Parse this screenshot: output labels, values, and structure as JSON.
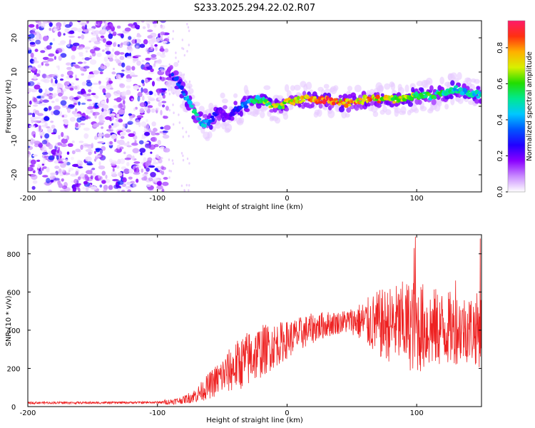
{
  "title": "S233.2025.294.22.02.R07",
  "chart_data": [
    {
      "type": "heatmap",
      "name": "spectrogram",
      "xlabel": "Height of straight line (km)",
      "ylabel": "Frequency (Hz)",
      "xlim": [
        -200,
        150
      ],
      "ylim": [
        -25,
        25
      ],
      "xticks": [
        -200,
        -100,
        0,
        100
      ],
      "yticks": [
        -20,
        -10,
        0,
        10,
        20
      ],
      "colorbar": {
        "label": "Normalized spectral amplitude",
        "range": [
          0,
          0.95
        ],
        "ticks": [
          0.0,
          0.2,
          0.4,
          0.6,
          0.8
        ],
        "colors": [
          "#ffffff",
          "#c98bff",
          "#8a00ff",
          "#2200ff",
          "#0055ff",
          "#00c8ff",
          "#00e890",
          "#22dd00",
          "#d8f000",
          "#ffb000",
          "#ff3010",
          "#ff1a6a"
        ]
      },
      "noise_region": {
        "x_from": -200,
        "x_to": -92,
        "amplitude_range": [
          0.02,
          0.3
        ]
      },
      "ridge": {
        "x": [
          -92,
          -88,
          -84,
          -80,
          -75,
          -70,
          -65,
          -60,
          -55,
          -50,
          -45,
          -40,
          -35,
          -30,
          -25,
          -20,
          -15,
          -10,
          -5,
          0,
          10,
          20,
          30,
          40,
          50,
          60,
          70,
          80,
          90,
          100,
          110,
          120,
          130,
          140,
          150
        ],
        "frequency": [
          10,
          9,
          7,
          4,
          1,
          -3,
          -5,
          -5,
          -2,
          -1,
          -4,
          -1,
          0,
          1,
          2,
          2,
          1,
          0,
          0,
          1,
          2,
          2,
          2,
          1,
          1,
          2,
          2,
          2,
          2,
          3,
          3,
          4,
          5,
          4,
          3
        ],
        "amplitude": [
          0.15,
          0.3,
          0.35,
          0.35,
          0.5,
          0.5,
          0.45,
          0.4,
          0.25,
          0.2,
          0.2,
          0.3,
          0.35,
          0.45,
          0.55,
          0.6,
          0.65,
          0.7,
          0.7,
          0.75,
          0.8,
          0.85,
          0.85,
          0.8,
          0.85,
          0.85,
          0.8,
          0.75,
          0.7,
          0.65,
          0.6,
          0.55,
          0.5,
          0.5,
          0.45
        ]
      }
    },
    {
      "type": "line",
      "name": "snr",
      "xlabel": "Height of straight line (km)",
      "ylabel": "SNR (10 * v/v)",
      "xlim": [
        -200,
        150
      ],
      "ylim": [
        0,
        900
      ],
      "xticks": [
        -200,
        -100,
        0,
        100
      ],
      "yticks": [
        0,
        200,
        400,
        600,
        800
      ],
      "line_color": "#ee2222",
      "envelope": {
        "x": [
          -200,
          -150,
          -100,
          -90,
          -80,
          -70,
          -60,
          -50,
          -40,
          -30,
          -20,
          -10,
          0,
          10,
          20,
          30,
          40,
          50,
          60,
          70,
          80,
          90,
          100,
          110,
          120,
          130,
          140,
          150
        ],
        "mean": [
          20,
          20,
          22,
          25,
          35,
          60,
          110,
          160,
          210,
          250,
          290,
          320,
          350,
          380,
          410,
          430,
          440,
          450,
          440,
          430,
          430,
          430,
          420,
          410,
          410,
          410,
          410,
          400
        ],
        "spread": [
          10,
          10,
          10,
          15,
          20,
          40,
          70,
          100,
          130,
          150,
          140,
          120,
          100,
          90,
          80,
          70,
          60,
          70,
          120,
          180,
          200,
          230,
          250,
          220,
          200,
          190,
          180,
          200
        ]
      },
      "peaks": [
        [
          99,
          890
        ],
        [
          98,
          830
        ],
        [
          130,
          660
        ],
        [
          149,
          880
        ]
      ]
    }
  ]
}
